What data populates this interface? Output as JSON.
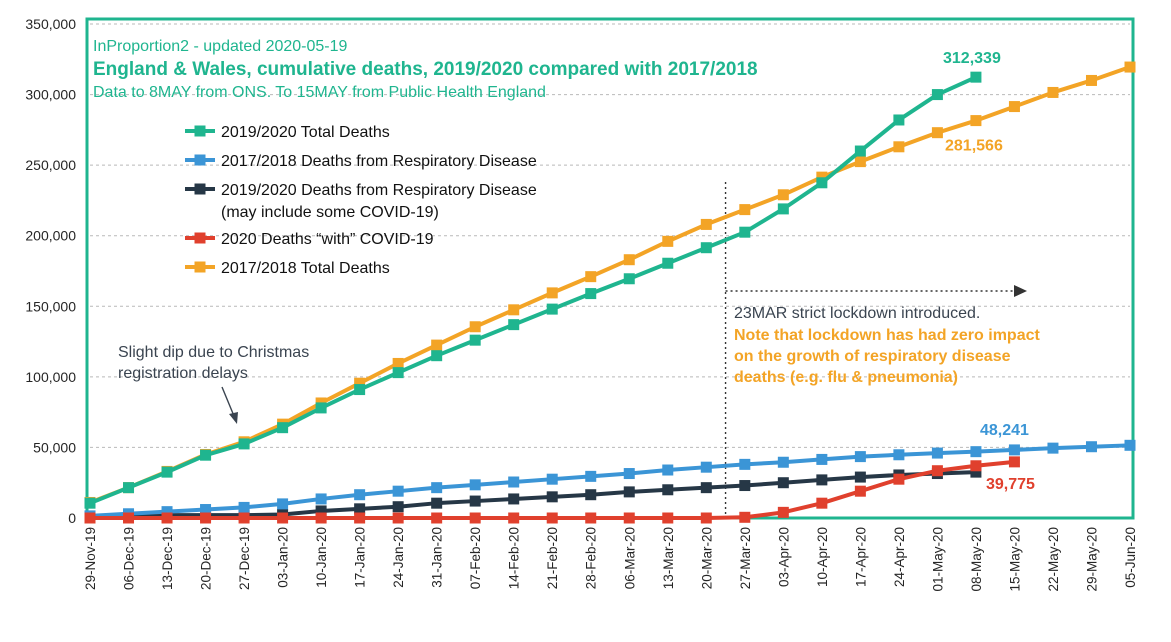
{
  "colors": {
    "teal": "#1fb58f",
    "blue": "#3b95d6",
    "navy": "#263746",
    "red": "#e0402d",
    "orange": "#f3a426",
    "frame": "#1fb58f",
    "grid": "#b9b9b9",
    "note_dark": "#3a4450"
  },
  "header": {
    "subtitle": "InProportion2 - updated 2020-05-19",
    "title": "England & Wales, cumulative deaths, 2019/2020 compared with 2017/2018",
    "source": "Data to 8MAY from ONS. To 15MAY from Public Health England"
  },
  "annotations": {
    "christmas_line1": "Slight dip due to Christmas",
    "christmas_line2": "registration delays",
    "lockdown_line1": "23MAR strict lockdown introduced.",
    "lockdown_line2": "Note that lockdown has had zero impact",
    "lockdown_line3": "on the growth of respiratory disease",
    "lockdown_line4": "deaths (e.g. flu & pneumonia)"
  },
  "chart_data": {
    "type": "line",
    "x": [
      "29-Nov-19",
      "06-Dec-19",
      "13-Dec-19",
      "20-Dec-19",
      "27-Dec-19",
      "03-Jan-20",
      "10-Jan-20",
      "17-Jan-20",
      "24-Jan-20",
      "31-Jan-20",
      "07-Feb-20",
      "14-Feb-20",
      "21-Feb-20",
      "28-Feb-20",
      "06-Mar-20",
      "13-Mar-20",
      "20-Mar-20",
      "27-Mar-20",
      "03-Apr-20",
      "10-Apr-20",
      "17-Apr-20",
      "24-Apr-20",
      "01-May-20",
      "08-May-20",
      "15-May-20",
      "22-May-20",
      "29-May-20",
      "05-Jun-20"
    ],
    "ylim": [
      0,
      350000
    ],
    "yticks": [
      0,
      50000,
      100000,
      150000,
      200000,
      250000,
      300000,
      350000
    ],
    "ytick_labels": [
      "0",
      "50,000",
      "100,000",
      "150,000",
      "200,000",
      "250,000",
      "300,000",
      "350,000"
    ],
    "grid": "horizontal dashed",
    "legend_position": "upper-left",
    "series": [
      {
        "name": "2019/2020 Total Deaths",
        "color_key": "teal",
        "values": [
          10500,
          21500,
          32500,
          44500,
          52500,
          64000,
          78000,
          91000,
          103000,
          115000,
          126000,
          137000,
          148000,
          159000,
          169500,
          180500,
          191500,
          202500,
          219000,
          237500,
          260000,
          282000,
          300000,
          312339,
          null,
          null,
          null,
          null
        ]
      },
      {
        "name": "2017/2018 Deaths from Respiratory Disease",
        "color_key": "blue",
        "values": [
          1500,
          3000,
          4500,
          6000,
          7500,
          10000,
          13500,
          16500,
          19000,
          21500,
          23500,
          25500,
          27500,
          29500,
          31500,
          34000,
          36000,
          38000,
          39500,
          41500,
          43500,
          44800,
          46000,
          47000,
          48241,
          49500,
          50500,
          51500
        ]
      },
      {
        "name": "2019/2020 Deaths from Respiratory Disease\n(may include some COVID-19)",
        "color_key": "navy",
        "values": [
          1000,
          2000,
          2000,
          2000,
          2000,
          2500,
          5000,
          6500,
          8000,
          10500,
          12000,
          13500,
          15000,
          16500,
          18500,
          20000,
          21500,
          23000,
          25000,
          27000,
          29000,
          30500,
          31500,
          32500,
          null,
          null,
          null,
          null
        ]
      },
      {
        "name": "2020 Deaths “with” COVID-19",
        "color_key": "red",
        "values": [
          0,
          0,
          0,
          0,
          0,
          0,
          0,
          0,
          0,
          0,
          0,
          0,
          0,
          0,
          0,
          0,
          0,
          500,
          4000,
          10500,
          19000,
          27500,
          33500,
          37000,
          39775,
          null,
          null,
          null
        ]
      },
      {
        "name": "2017/2018 Total Deaths",
        "color_key": "orange",
        "values": [
          11000,
          21500,
          33000,
          45000,
          54000,
          66500,
          81500,
          95500,
          109500,
          122500,
          135500,
          147500,
          159500,
          171000,
          183000,
          196000,
          208000,
          218500,
          229000,
          241500,
          252500,
          263000,
          273000,
          281566,
          291500,
          301500,
          310000,
          319500
        ]
      }
    ],
    "data_labels": [
      {
        "text": "312,339",
        "series": 0,
        "index": 23,
        "color_key": "teal"
      },
      {
        "text": "281,566",
        "series": 4,
        "index": 23,
        "color_key": "orange"
      },
      {
        "text": "48,241",
        "series": 1,
        "index": 24,
        "color_key": "blue"
      },
      {
        "text": "39,775",
        "series": 3,
        "index": 24,
        "color_key": "red"
      }
    ],
    "lockdown_index": 16.5
  }
}
